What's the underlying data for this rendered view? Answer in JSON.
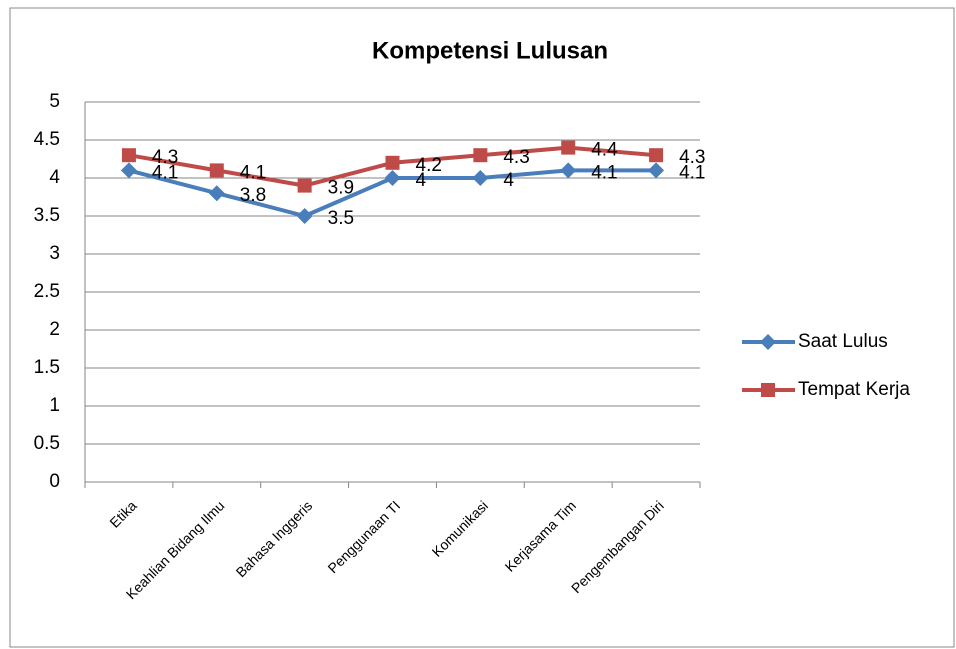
{
  "chart_data": {
    "type": "line",
    "title": "Kompetensi Lulusan",
    "categories": [
      "Etika",
      "Keahlian Bidang Ilmu",
      "Bahasa Inggeris",
      "Penggunaan TI",
      "Komunikasi",
      "Kerjasama Tim",
      "Pengembangan Diri"
    ],
    "series": [
      {
        "name": "Saat Lulus",
        "color": "#4a7ebb",
        "values": [
          4.1,
          3.8,
          3.5,
          4,
          4,
          4.1,
          4.1
        ]
      },
      {
        "name": "Tempat Kerja",
        "color": "#be4b48",
        "values": [
          4.3,
          4.1,
          3.9,
          4.2,
          4.3,
          4.4,
          4.3
        ]
      }
    ],
    "ylim": [
      0,
      5
    ],
    "yticks": [
      0,
      0.5,
      1,
      1.5,
      2,
      2.5,
      3,
      3.5,
      4,
      4.5,
      5
    ],
    "grid": true,
    "legend": "right"
  }
}
